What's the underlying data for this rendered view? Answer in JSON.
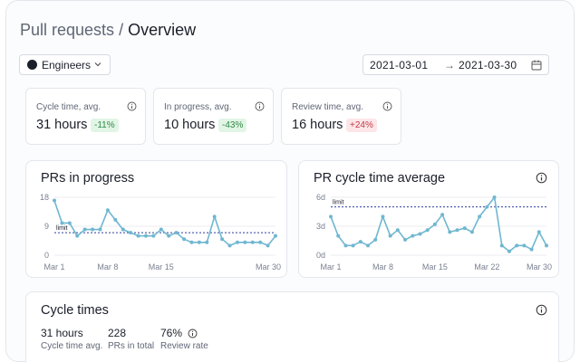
{
  "header": {
    "breadcrumb_parent": "Pull requests",
    "separator": "/",
    "page_title": "Overview"
  },
  "team_select": {
    "value": "Engineers",
    "icon": "chevron-down-icon"
  },
  "date_range": {
    "start": "2021-03-01",
    "arrow": "→",
    "end": "2021-03-30",
    "icon": "calendar-icon"
  },
  "kpis": [
    {
      "label": "Cycle time, avg.",
      "value": "31 hours",
      "delta": "-11%",
      "trend": "good"
    },
    {
      "label": "In progress, avg.",
      "value": "10 hours",
      "delta": "-43%",
      "trend": "good"
    },
    {
      "label": "Review time, avg.",
      "value": "16 hours",
      "delta": "+24%",
      "trend": "bad"
    }
  ],
  "colors": {
    "line": "#6fb7d0",
    "limit": "#2f3f9e",
    "good_bg": "#e2f5e6",
    "good_fg": "#2f8a45",
    "bad_bg": "#fde6e8",
    "bad_fg": "#c0394a"
  },
  "chart_data": [
    {
      "type": "line",
      "title": "PRs in progress",
      "x_labels": [
        "Mar 1",
        "Mar 8",
        "Mar 15",
        "Mar 30"
      ],
      "x_label_days": [
        1,
        8,
        15,
        30
      ],
      "x": [
        1,
        2,
        3,
        4,
        5,
        6,
        7,
        8,
        9,
        10,
        11,
        12,
        13,
        14,
        15,
        16,
        17,
        18,
        19,
        20,
        21,
        22,
        23,
        24,
        25,
        26,
        27,
        28,
        29,
        30
      ],
      "values": [
        17,
        10,
        10,
        6,
        8,
        8,
        8,
        14,
        11,
        8,
        7,
        6,
        6,
        6,
        8,
        6,
        7,
        5,
        4,
        4,
        4,
        12,
        5,
        3,
        4,
        4,
        4,
        4,
        3,
        6
      ],
      "y_ticks": [
        0,
        9,
        18
      ],
      "y_tick_labels": [
        "0",
        "9",
        "18"
      ],
      "ylim": [
        0,
        18
      ],
      "limit": 7,
      "limit_label": "limit"
    },
    {
      "type": "line",
      "title": "PR cycle time average",
      "x_labels": [
        "Mar 1",
        "Mar 8",
        "Mar 15",
        "Mar 22",
        "Mar 30"
      ],
      "x_label_days": [
        1,
        8,
        15,
        22,
        30
      ],
      "x": [
        1,
        2,
        3,
        4,
        5,
        6,
        7,
        8,
        9,
        10,
        11,
        12,
        13,
        14,
        15,
        16,
        17,
        18,
        19,
        20,
        21,
        22,
        23,
        24,
        25,
        26,
        27,
        28,
        29,
        30
      ],
      "values": [
        4,
        2,
        1,
        1,
        1.4,
        1,
        1.6,
        4,
        2,
        2.6,
        1.6,
        2,
        2.2,
        2.6,
        3.2,
        4.2,
        2.4,
        2.6,
        2.8,
        2.4,
        4,
        5,
        6,
        1,
        0.4,
        1,
        1,
        0.6,
        2.4,
        1
      ],
      "y_ticks": [
        0,
        3,
        6
      ],
      "y_tick_labels": [
        "0d",
        "3d",
        "6d"
      ],
      "ylim": [
        0,
        6
      ],
      "limit": 5,
      "limit_label": "limit"
    }
  ],
  "cycle_times": {
    "title": "Cycle times",
    "stats": [
      {
        "value": "31 hours",
        "label": "Cycle time avg."
      },
      {
        "value": "228",
        "label": "PRs in total"
      },
      {
        "value": "76%",
        "label": "Review rate"
      }
    ]
  }
}
